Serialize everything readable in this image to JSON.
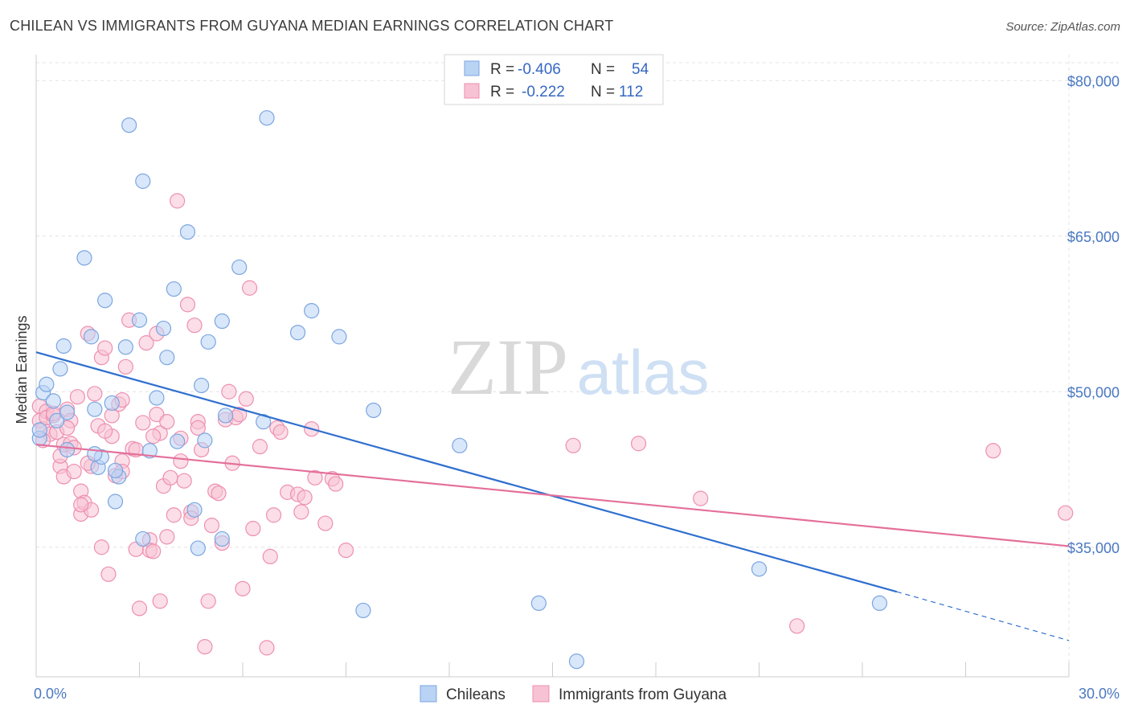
{
  "title": "CHILEAN VS IMMIGRANTS FROM GUYANA MEDIAN EARNINGS CORRELATION CHART",
  "source": "Source: ZipAtlas.com",
  "watermark": {
    "zip": "ZIP",
    "atlas": "atlas"
  },
  "legend": {
    "rows": [
      {
        "r_label": "R =",
        "r_value": "-0.406",
        "n_label": "N =",
        "n_value": "54"
      },
      {
        "r_label": "R =",
        "r_value": "-0.222",
        "n_label": "N =",
        "n_value": "112"
      }
    ]
  },
  "colors": {
    "blue_fill": "#b9d3f5",
    "blue_stroke": "#7ba6e0",
    "blue_line": "#2f6fcf",
    "pink_fill": "#f7c2d4",
    "pink_stroke": "#ee8fb0",
    "pink_line": "#e4709a",
    "grid": "#e4e4e4",
    "axis_text": "#4a78c2"
  },
  "chart_data": {
    "type": "scatter",
    "title": "CHILEAN VS IMMIGRANTS FROM GUYANA MEDIAN EARNINGS CORRELATION CHART",
    "xlabel": "",
    "ylabel": "Median Earnings",
    "xlim": [
      0,
      30
    ],
    "ylim": [
      22500,
      82500
    ],
    "x_tick_labels": [
      "0.0%",
      "30.0%"
    ],
    "y_ticks": [
      35000,
      50000,
      65000,
      80000
    ],
    "y_tick_labels": [
      "$35,000",
      "$50,000",
      "$65,000",
      "$80,000"
    ],
    "grid": true,
    "legend_position": "top-center",
    "series": [
      {
        "name": "Chileans",
        "r": -0.406,
        "n": 54,
        "trend": {
          "x0": 0,
          "y0": 53800,
          "x1": 25,
          "y1": 30700,
          "dash_to_x": 30,
          "dash_to_y": 26000
        },
        "points": [
          [
            0.1,
            45500
          ],
          [
            0.1,
            46300
          ],
          [
            0.2,
            49900
          ],
          [
            0.3,
            50700
          ],
          [
            0.5,
            49100
          ],
          [
            0.6,
            47200
          ],
          [
            0.7,
            52200
          ],
          [
            0.8,
            54400
          ],
          [
            0.9,
            48000
          ],
          [
            0.9,
            44400
          ],
          [
            1.4,
            62900
          ],
          [
            1.6,
            55300
          ],
          [
            1.7,
            48300
          ],
          [
            1.8,
            42700
          ],
          [
            1.9,
            43700
          ],
          [
            2.0,
            58800
          ],
          [
            2.2,
            48900
          ],
          [
            2.3,
            39400
          ],
          [
            2.4,
            41800
          ],
          [
            2.6,
            54300
          ],
          [
            2.7,
            75700
          ],
          [
            3.0,
            56900
          ],
          [
            3.1,
            70300
          ],
          [
            3.1,
            35800
          ],
          [
            3.3,
            44300
          ],
          [
            3.5,
            49400
          ],
          [
            3.7,
            56100
          ],
          [
            3.8,
            53300
          ],
          [
            4.0,
            59900
          ],
          [
            4.1,
            45200
          ],
          [
            4.4,
            65400
          ],
          [
            4.6,
            38600
          ],
          [
            4.7,
            34900
          ],
          [
            4.8,
            50600
          ],
          [
            4.9,
            45300
          ],
          [
            5.0,
            54800
          ],
          [
            5.4,
            35800
          ],
          [
            5.5,
            47700
          ],
          [
            5.4,
            56800
          ],
          [
            5.9,
            62000
          ],
          [
            6.6,
            47100
          ],
          [
            6.7,
            76400
          ],
          [
            7.6,
            55700
          ],
          [
            8.0,
            57800
          ],
          [
            8.8,
            55300
          ],
          [
            9.8,
            48200
          ],
          [
            1.7,
            44000
          ],
          [
            2.3,
            42400
          ],
          [
            12.3,
            44800
          ],
          [
            14.6,
            29600
          ],
          [
            15.7,
            24000
          ],
          [
            21.0,
            32900
          ],
          [
            24.5,
            29600
          ],
          [
            9.5,
            28900
          ]
        ]
      },
      {
        "name": "Immigrants from Guyana",
        "r": -0.222,
        "n": 112,
        "trend": {
          "x0": 0,
          "y0": 44900,
          "x1": 30,
          "y1": 35100
        },
        "points": [
          [
            0.1,
            47200
          ],
          [
            0.1,
            48600
          ],
          [
            0.2,
            46400
          ],
          [
            0.3,
            48100
          ],
          [
            0.3,
            47500
          ],
          [
            0.4,
            45900
          ],
          [
            0.5,
            47700
          ],
          [
            0.6,
            46100
          ],
          [
            0.7,
            42800
          ],
          [
            0.7,
            43800
          ],
          [
            0.8,
            44900
          ],
          [
            0.8,
            41800
          ],
          [
            0.9,
            48300
          ],
          [
            1.0,
            47200
          ],
          [
            1.0,
            45000
          ],
          [
            1.1,
            42300
          ],
          [
            1.1,
            44600
          ],
          [
            1.2,
            49500
          ],
          [
            1.3,
            38200
          ],
          [
            1.3,
            40400
          ],
          [
            1.4,
            39300
          ],
          [
            1.5,
            55600
          ],
          [
            1.6,
            38600
          ],
          [
            1.6,
            42800
          ],
          [
            1.7,
            49800
          ],
          [
            1.8,
            46700
          ],
          [
            1.9,
            53300
          ],
          [
            1.9,
            35000
          ],
          [
            2.0,
            54200
          ],
          [
            2.1,
            32400
          ],
          [
            2.2,
            47700
          ],
          [
            2.2,
            45700
          ],
          [
            2.3,
            41900
          ],
          [
            2.4,
            48800
          ],
          [
            2.5,
            43300
          ],
          [
            2.5,
            49200
          ],
          [
            2.6,
            52400
          ],
          [
            2.7,
            56900
          ],
          [
            2.8,
            44500
          ],
          [
            2.9,
            44400
          ],
          [
            3.0,
            29100
          ],
          [
            3.1,
            47000
          ],
          [
            3.2,
            54700
          ],
          [
            3.3,
            35700
          ],
          [
            3.3,
            34700
          ],
          [
            3.4,
            34600
          ],
          [
            3.5,
            47800
          ],
          [
            3.6,
            46000
          ],
          [
            3.6,
            29800
          ],
          [
            3.7,
            40900
          ],
          [
            3.8,
            47100
          ],
          [
            3.8,
            36000
          ],
          [
            3.9,
            41700
          ],
          [
            4.0,
            38100
          ],
          [
            4.1,
            68400
          ],
          [
            4.2,
            45500
          ],
          [
            4.2,
            43300
          ],
          [
            4.3,
            41400
          ],
          [
            4.4,
            58400
          ],
          [
            4.5,
            38400
          ],
          [
            4.5,
            37800
          ],
          [
            4.6,
            56400
          ],
          [
            4.7,
            47100
          ],
          [
            4.8,
            44400
          ],
          [
            4.9,
            25400
          ],
          [
            5.0,
            29800
          ],
          [
            5.1,
            37100
          ],
          [
            5.2,
            40400
          ],
          [
            5.3,
            40200
          ],
          [
            5.4,
            35400
          ],
          [
            5.5,
            47300
          ],
          [
            5.6,
            50000
          ],
          [
            5.7,
            43100
          ],
          [
            5.8,
            47500
          ],
          [
            5.9,
            47800
          ],
          [
            6.0,
            31000
          ],
          [
            6.1,
            49300
          ],
          [
            6.2,
            60000
          ],
          [
            6.3,
            36800
          ],
          [
            6.5,
            44700
          ],
          [
            6.7,
            25300
          ],
          [
            6.8,
            34100
          ],
          [
            6.9,
            38100
          ],
          [
            7.0,
            46500
          ],
          [
            7.1,
            46100
          ],
          [
            7.3,
            40300
          ],
          [
            7.6,
            40100
          ],
          [
            7.7,
            38400
          ],
          [
            7.8,
            39800
          ],
          [
            8.0,
            46400
          ],
          [
            8.1,
            41700
          ],
          [
            8.4,
            37300
          ],
          [
            8.6,
            41600
          ],
          [
            8.7,
            41100
          ],
          [
            9.0,
            34700
          ],
          [
            1.3,
            39100
          ],
          [
            2.5,
            42300
          ],
          [
            3.5,
            55600
          ],
          [
            4.7,
            46500
          ],
          [
            15.6,
            44800
          ],
          [
            17.5,
            45000
          ],
          [
            19.3,
            39700
          ],
          [
            22.1,
            27400
          ],
          [
            27.8,
            44300
          ],
          [
            29.9,
            38300
          ],
          [
            0.2,
            45300
          ],
          [
            0.5,
            47900
          ],
          [
            0.9,
            46500
          ],
          [
            1.5,
            43100
          ],
          [
            2.0,
            46200
          ],
          [
            2.9,
            34800
          ],
          [
            3.4,
            45700
          ]
        ]
      }
    ]
  }
}
